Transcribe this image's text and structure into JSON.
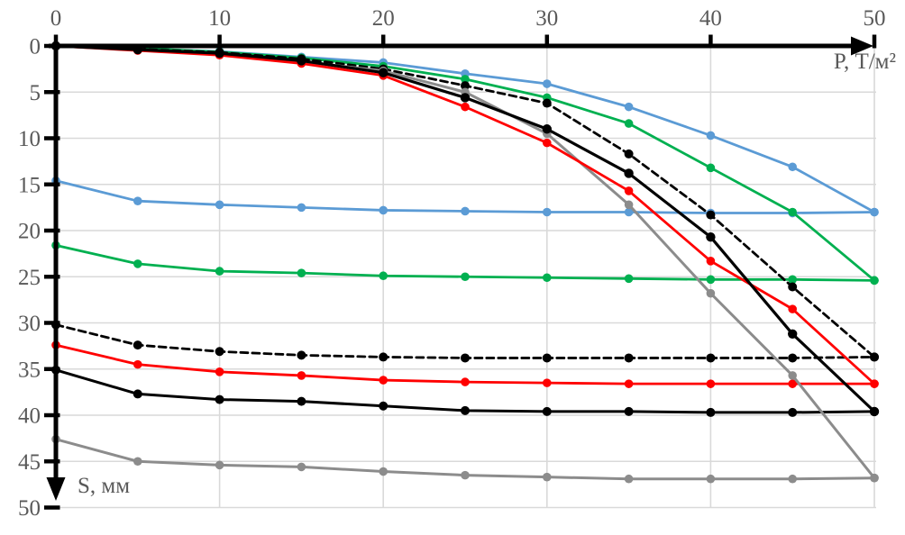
{
  "chart_data": {
    "type": "line",
    "title": "",
    "xlabel": "P, Т/м²",
    "ylabel": "S, мм",
    "xlim": [
      0,
      50
    ],
    "ylim": [
      0,
      50
    ],
    "y_inverted": true,
    "grid": true,
    "legend_position": "none",
    "x_ticks": [
      0,
      10,
      20,
      30,
      40,
      50
    ],
    "y_ticks": [
      0,
      5,
      10,
      15,
      20,
      25,
      30,
      35,
      40,
      45,
      50
    ],
    "x": [
      0,
      5,
      10,
      15,
      20,
      25,
      30,
      35,
      40,
      45,
      50
    ],
    "series": [
      {
        "name": "blue-flat",
        "color": "#5B9BD5",
        "dash": "none",
        "width": 2.8,
        "marker_r": 4.8,
        "values": [
          14.6,
          16.8,
          17.2,
          17.5,
          17.8,
          17.9,
          18.0,
          18.0,
          18.1,
          18.1,
          18.0
        ]
      },
      {
        "name": "green-flat",
        "color": "#00B050",
        "dash": "none",
        "width": 2.8,
        "marker_r": 4.8,
        "values": [
          21.6,
          23.6,
          24.4,
          24.6,
          24.9,
          25.0,
          25.1,
          25.2,
          25.3,
          25.3,
          25.4
        ]
      },
      {
        "name": "black-dashed-flat",
        "color": "#000000",
        "dash": "dashed",
        "width": 2.8,
        "marker_r": 5.0,
        "values": [
          30.2,
          32.4,
          33.1,
          33.5,
          33.7,
          33.8,
          33.8,
          33.8,
          33.8,
          33.8,
          33.7
        ]
      },
      {
        "name": "red-flat",
        "color": "#FF0000",
        "dash": "none",
        "width": 2.8,
        "marker_r": 4.8,
        "values": [
          32.4,
          34.5,
          35.3,
          35.7,
          36.2,
          36.4,
          36.5,
          36.6,
          36.6,
          36.6,
          36.6
        ]
      },
      {
        "name": "black-flat",
        "color": "#000000",
        "dash": "none",
        "width": 3.0,
        "marker_r": 5.0,
        "values": [
          35.1,
          37.7,
          38.3,
          38.5,
          39.0,
          39.5,
          39.6,
          39.6,
          39.7,
          39.7,
          39.6
        ]
      },
      {
        "name": "gray-flat",
        "color": "#8C8C8C",
        "dash": "none",
        "width": 3.0,
        "marker_r": 4.8,
        "values": [
          42.6,
          45.0,
          45.4,
          45.6,
          46.1,
          46.5,
          46.7,
          46.9,
          46.9,
          46.9,
          46.8
        ]
      },
      {
        "name": "blue-steep",
        "color": "#5B9BD5",
        "dash": "none",
        "width": 2.8,
        "marker_r": 4.8,
        "values": [
          0,
          0.3,
          0.6,
          1.2,
          1.8,
          3.0,
          4.1,
          6.6,
          9.7,
          13.1,
          18.0
        ]
      },
      {
        "name": "green-steep",
        "color": "#00B050",
        "dash": "none",
        "width": 2.8,
        "marker_r": 4.8,
        "values": [
          0,
          0.25,
          0.65,
          1.3,
          2.2,
          3.6,
          5.6,
          8.4,
          13.2,
          18.0,
          25.4
        ]
      },
      {
        "name": "black-dashed-steep",
        "color": "#000000",
        "dash": "dashed",
        "width": 2.8,
        "marker_r": 5.0,
        "values": [
          0,
          0.35,
          0.7,
          1.4,
          2.5,
          4.3,
          6.2,
          11.7,
          18.3,
          26.1,
          33.7
        ]
      },
      {
        "name": "gray-steep",
        "color": "#8C8C8C",
        "dash": "none",
        "width": 3.0,
        "marker_r": 4.8,
        "values": [
          0,
          0.4,
          0.85,
          1.7,
          2.7,
          5.0,
          9.5,
          17.2,
          26.8,
          35.7,
          46.8
        ]
      },
      {
        "name": "red-steep",
        "color": "#FF0000",
        "dash": "none",
        "width": 2.8,
        "marker_r": 4.8,
        "values": [
          0,
          0.5,
          1.0,
          1.9,
          3.2,
          6.6,
          10.5,
          15.7,
          23.3,
          28.5,
          36.6
        ]
      },
      {
        "name": "black-steep",
        "color": "#000000",
        "dash": "none",
        "width": 3.2,
        "marker_r": 5.2,
        "values": [
          0,
          0.4,
          0.8,
          1.6,
          2.9,
          5.6,
          9.0,
          13.8,
          20.7,
          31.2,
          39.6
        ]
      }
    ]
  },
  "style_colors": {
    "axis": "#000000",
    "grid": "#D9D9D9",
    "tick_label": "#595959",
    "background": "#FFFFFF"
  }
}
